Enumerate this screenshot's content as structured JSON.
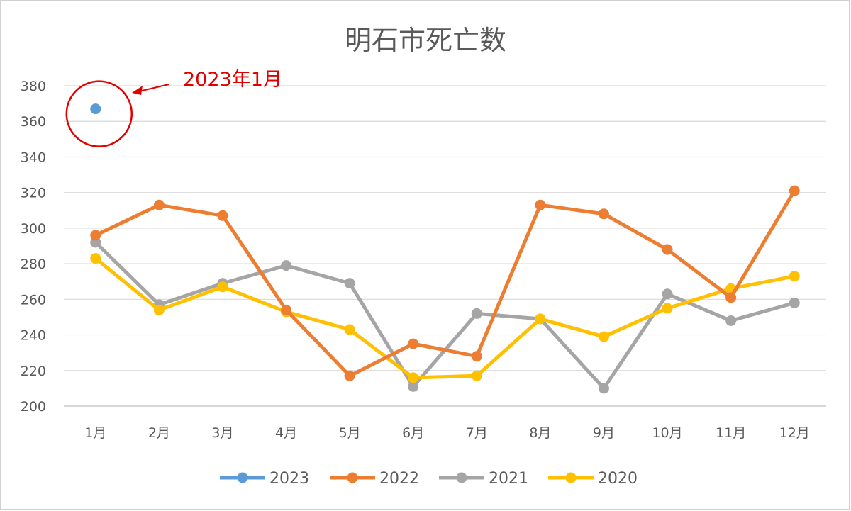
{
  "chart_data": {
    "type": "line",
    "title": "明石市死亡数",
    "categories": [
      "1月",
      "2月",
      "3月",
      "4月",
      "5月",
      "6月",
      "7月",
      "8月",
      "9月",
      "10月",
      "11月",
      "12月"
    ],
    "ylim": [
      200,
      380
    ],
    "yticks": [
      200,
      220,
      240,
      260,
      280,
      300,
      320,
      340,
      360,
      380
    ],
    "grid": true,
    "legend_position": "bottom",
    "series": [
      {
        "name": "2023",
        "color": "#5b9bd5",
        "values": [
          367,
          null,
          null,
          null,
          null,
          null,
          null,
          null,
          null,
          null,
          null,
          null
        ]
      },
      {
        "name": "2022",
        "color": "#ed7d31",
        "values": [
          296,
          313,
          307,
          254,
          217,
          235,
          228,
          313,
          308,
          288,
          261,
          321
        ]
      },
      {
        "name": "2021",
        "color": "#a5a5a5",
        "values": [
          292,
          257,
          269,
          279,
          269,
          211,
          252,
          249,
          210,
          263,
          248,
          258
        ]
      },
      {
        "name": "2020",
        "color": "#ffc000",
        "values": [
          283,
          254,
          267,
          253,
          243,
          216,
          217,
          249,
          239,
          255,
          266,
          273
        ]
      }
    ],
    "annotation": {
      "text": "2023年1月",
      "color": "#e00000",
      "target": {
        "category": "1月",
        "value": 367
      }
    }
  }
}
